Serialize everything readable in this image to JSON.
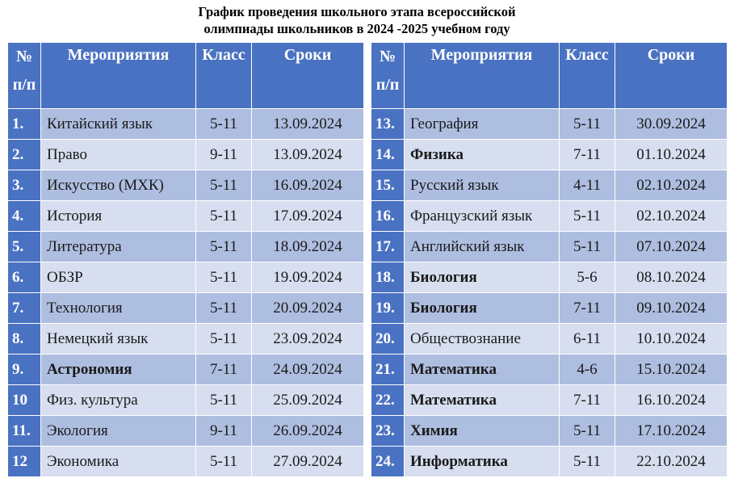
{
  "title": {
    "line1": "График проведения школьного этапа всероссийской",
    "line2": "олимпиады школьников в 2024 -2025 учебном году"
  },
  "headers": {
    "num_line1": "№",
    "num_line2": "п/п",
    "name": "Мероприятия",
    "class": "Класс",
    "date": "Сроки"
  },
  "left_rows": [
    {
      "num": "1.",
      "name": "Китайский язык",
      "class": "5-11",
      "date": "13.09.2024",
      "bold": false
    },
    {
      "num": "2.",
      "name": "Право",
      "class": "9-11",
      "date": "13.09.2024",
      "bold": false
    },
    {
      "num": "3.",
      "name": "Искусство (МХК)",
      "class": "5-11",
      "date": "16.09.2024",
      "bold": false
    },
    {
      "num": "4.",
      "name": "История",
      "class": "5-11",
      "date": "17.09.2024",
      "bold": false
    },
    {
      "num": "5.",
      "name": "Литература",
      "class": "5-11",
      "date": "18.09.2024",
      "bold": false
    },
    {
      "num": "6.",
      "name": "ОБЗР",
      "class": "5-11",
      "date": "19.09.2024",
      "bold": false
    },
    {
      "num": "7.",
      "name": "Технология",
      "class": "5-11",
      "date": "20.09.2024",
      "bold": false
    },
    {
      "num": "8.",
      "name": "Немецкий язык",
      "class": "5-11",
      "date": "23.09.2024",
      "bold": false
    },
    {
      "num": "9.",
      "name": "Астрономия",
      "class": "7-11",
      "date": "24.09.2024",
      "bold": true
    },
    {
      "num": "10",
      "name": "Физ.  культура",
      "class": "5-11",
      "date": "25.09.2024",
      "bold": false
    },
    {
      "num": "11.",
      "name": "Экология",
      "class": "9-11",
      "date": "26.09.2024",
      "bold": false
    },
    {
      "num": "12",
      "name": "Экономика",
      "class": "5-11",
      "date": "27.09.2024",
      "bold": false
    }
  ],
  "right_rows": [
    {
      "num": "13.",
      "name": "География",
      "class": "5-11",
      "date": "30.09.2024",
      "bold": false
    },
    {
      "num": "14.",
      "name": "Физика",
      "class": "7-11",
      "date": "01.10.2024",
      "bold": true
    },
    {
      "num": "15.",
      "name": "Русский язык",
      "class": "4-11",
      "date": "02.10.2024",
      "bold": false
    },
    {
      "num": "16.",
      "name": "Французский язык",
      "class": "5-11",
      "date": "02.10.2024",
      "bold": false
    },
    {
      "num": "17.",
      "name": "Английский язык",
      "class": "5-11",
      "date": "07.10.2024",
      "bold": false
    },
    {
      "num": "18.",
      "name": "Биология",
      "class": "5-6",
      "date": "08.10.2024",
      "bold": true
    },
    {
      "num": "19.",
      "name": "Биология",
      "class": "7-11",
      "date": "09.10.2024",
      "bold": true
    },
    {
      "num": "20.",
      "name": "Обществознание",
      "class": "6-11",
      "date": "10.10.2024",
      "bold": false
    },
    {
      "num": "21.",
      "name": "Математика",
      "class": "4-6",
      "date": "15.10.2024",
      "bold": true
    },
    {
      "num": "22.",
      "name": "Математика",
      "class": "7-11",
      "date": "16.10.2024",
      "bold": true
    },
    {
      "num": "23.",
      "name": "Химия",
      "class": "5-11",
      "date": "17.10.2024",
      "bold": true
    },
    {
      "num": "24.",
      "name": "Информатика",
      "class": "5-11",
      "date": "22.10.2024",
      "bold": true
    }
  ],
  "colors": {
    "header_blue": "#4a72c2",
    "row_dark": "#aebee0",
    "row_light": "#d6deef"
  }
}
